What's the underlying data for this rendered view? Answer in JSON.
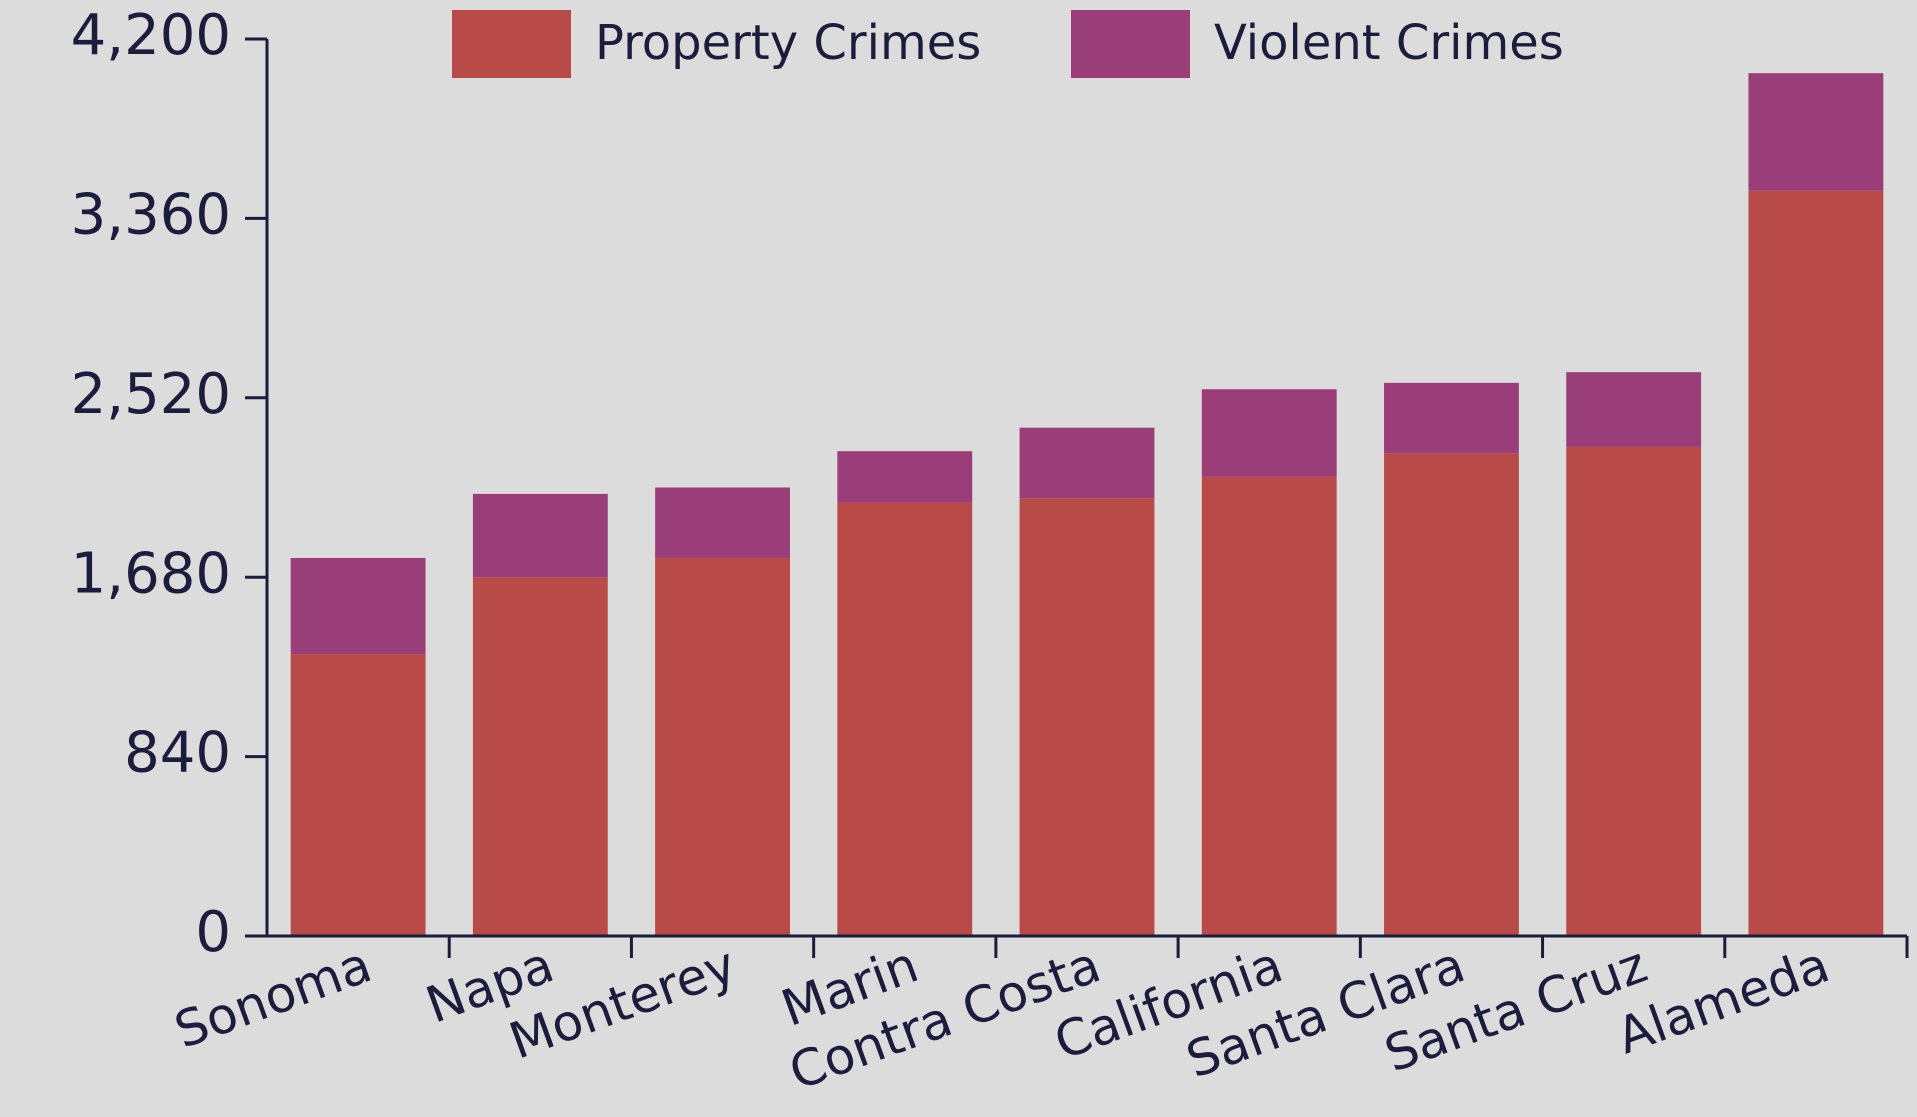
{
  "chart_data": {
    "type": "stacked_bar",
    "categories": [
      "Sonoma",
      "Napa",
      "Monterey",
      "Marin",
      "Contra Costa",
      "California",
      "Santa Clara",
      "Santa Cruz",
      "Alameda"
    ],
    "series": [
      {
        "name": "Property Crimes",
        "color": "#b84a47",
        "values": [
          1320,
          1680,
          1770,
          2030,
          2050,
          2150,
          2260,
          2290,
          3490
        ]
      },
      {
        "name": "Violent Crimes",
        "color": "#9a3e79",
        "values": [
          450,
          390,
          330,
          240,
          330,
          410,
          330,
          350,
          550
        ]
      }
    ],
    "ylim": [
      0,
      4200
    ],
    "yticks": [
      0,
      {
        "value": 840,
        "label": "840"
      },
      {
        "value": 1680,
        "label": "1,680"
      },
      {
        "value": 2520,
        "label": "2,520"
      },
      {
        "value": 3360,
        "label": "3,360"
      },
      {
        "value": 4200,
        "label": "4,200"
      }
    ],
    "legend": "top"
  }
}
